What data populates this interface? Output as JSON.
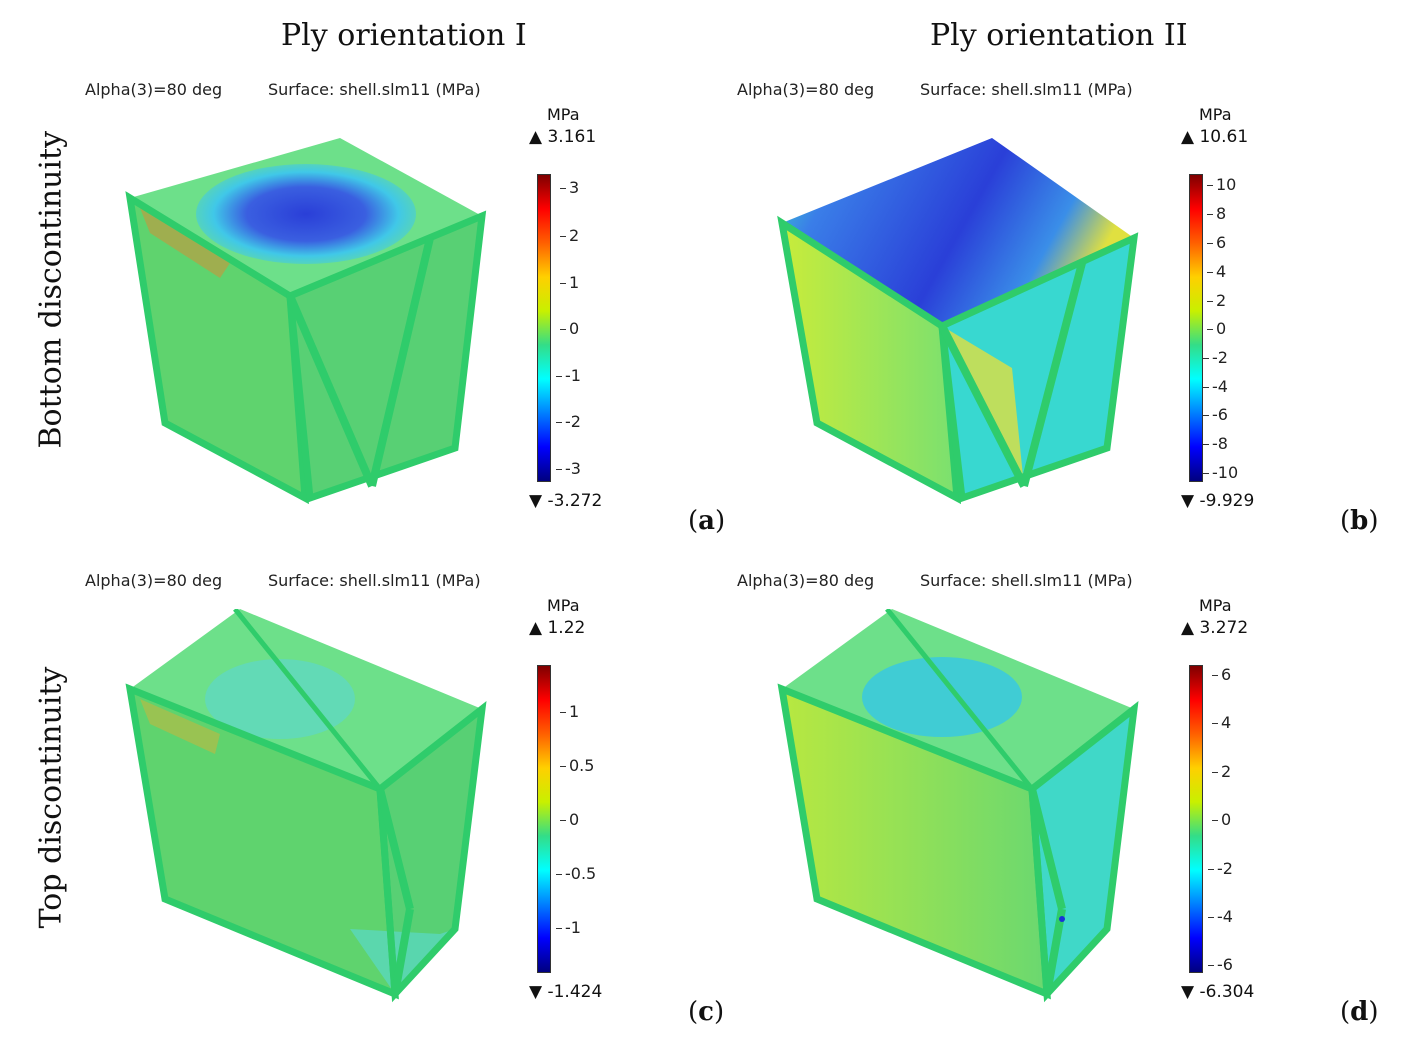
{
  "headers": {
    "col1": "Ply orientation I",
    "col2": "Ply orientation II",
    "row1": "Bottom discontinuity",
    "row2": "Top discontinuity"
  },
  "panels": [
    {
      "alpha": "Alpha(3)=80 deg",
      "surface": "Surface: shell.slm11 (MPa)",
      "unit": "MPa",
      "max": "3.161",
      "min": "-3.272",
      "ticks": [
        "3",
        "2",
        "1",
        "0",
        "-1",
        "-2",
        "-3"
      ],
      "label_open": "(",
      "label": "a",
      "label_close": ")"
    },
    {
      "alpha": "Alpha(3)=80 deg",
      "surface": "Surface: shell.slm11 (MPa)",
      "unit": "MPa",
      "max": "10.61",
      "min": "-9.929",
      "ticks": [
        "10",
        "8",
        "6",
        "4",
        "2",
        "0",
        "-2",
        "-4",
        "-6",
        "-8",
        "-10"
      ],
      "label_open": "(",
      "label": "b",
      "label_close": ")"
    },
    {
      "alpha": "Alpha(3)=80 deg",
      "surface": "Surface: shell.slm11 (MPa)",
      "unit": "MPa",
      "max": "1.22",
      "min": "-1.424",
      "ticks": [
        "1",
        "0.5",
        "0",
        "-0.5",
        "-1"
      ],
      "label_open": "(",
      "label": "c",
      "label_close": ")"
    },
    {
      "alpha": "Alpha(3)=80 deg",
      "surface": "Surface: shell.slm11 (MPa)",
      "unit": "MPa",
      "max": "3.272",
      "min": "-6.304",
      "ticks": [
        "6",
        "4",
        "2",
        "0",
        "-2",
        "-4",
        "-6"
      ],
      "label_open": "(",
      "label": "d",
      "label_close": ")"
    }
  ],
  "colors": {
    "colormap": [
      "#00007f",
      "#0000ff",
      "#0080ff",
      "#00ffff",
      "#33dd88",
      "#c8f000",
      "#ffd000",
      "#ff6000",
      "#ff0000",
      "#7f0000"
    ],
    "frame_green": "#2fcc6b",
    "top_blue": "#3a5fe0",
    "face_green": "#5fd36e",
    "face_yellow": "#c7e34a",
    "face_cyan": "#38e0c8"
  }
}
